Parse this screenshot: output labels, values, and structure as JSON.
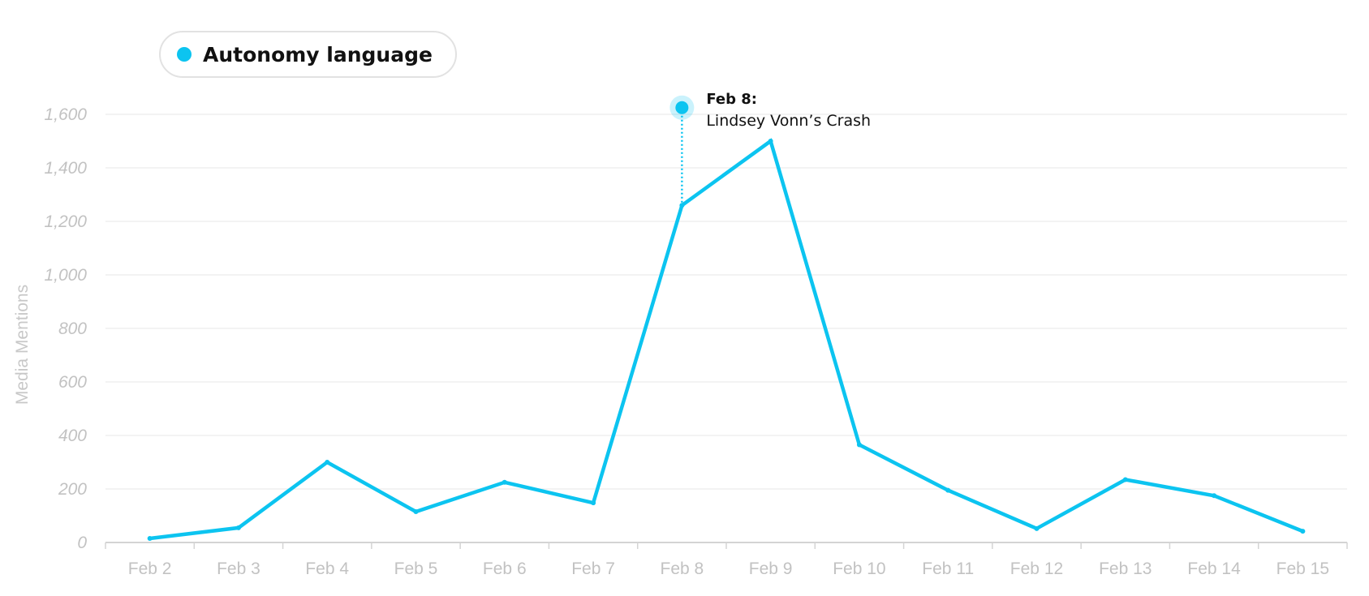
{
  "chart_data": {
    "type": "line",
    "title": "",
    "xlabel": "",
    "ylabel": "Media Mentions",
    "ylim": [
      0,
      1600
    ],
    "yticks": [
      0,
      200,
      400,
      600,
      800,
      1000,
      1200,
      1400,
      1600
    ],
    "ytick_labels": [
      "0",
      "200",
      "400",
      "600",
      "800",
      "1,000",
      "1,200",
      "1,400",
      "1,600"
    ],
    "categories": [
      "Feb 2",
      "Feb 3",
      "Feb 4",
      "Feb 5",
      "Feb 6",
      "Feb 7",
      "Feb 8",
      "Feb 9",
      "Feb 10",
      "Feb 11",
      "Feb 12",
      "Feb 13",
      "Feb 14",
      "Feb 15"
    ],
    "series": [
      {
        "name": "Autonomy language",
        "color": "#0cc4f0",
        "values": [
          15,
          55,
          300,
          115,
          225,
          148,
          1260,
          1500,
          365,
          195,
          52,
          235,
          175,
          42
        ]
      }
    ],
    "grid": true,
    "legend_position": "top-left",
    "annotation": {
      "category": "Feb 8",
      "marker_value": 1625,
      "title": "Feb 8:",
      "text": "Lindsey Vonn’s Crash"
    }
  }
}
